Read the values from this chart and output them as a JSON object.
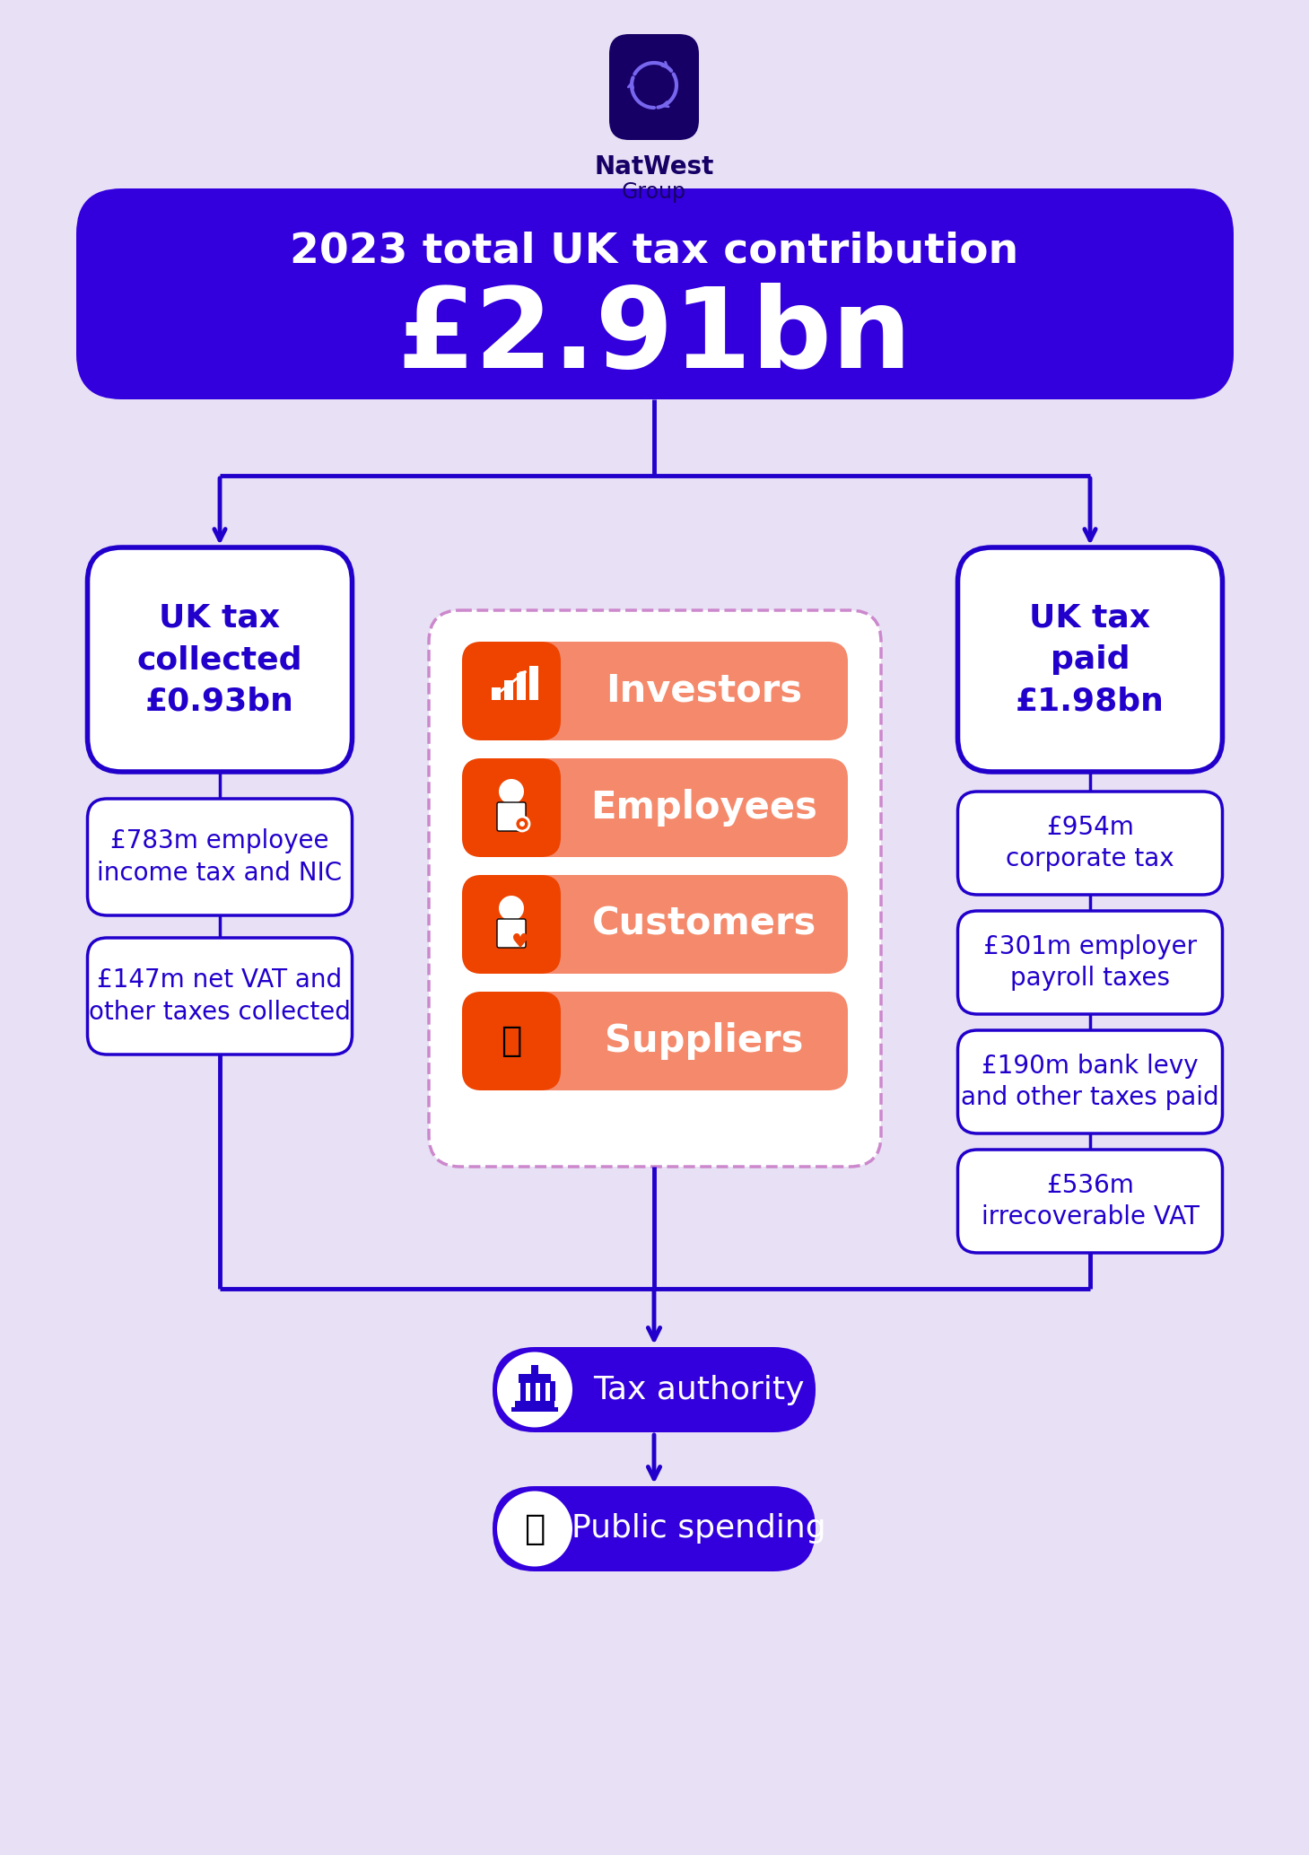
{
  "bg_color": "#e8e0f5",
  "blue_dark": "#2200cc",
  "blue_banner": "#3300dd",
  "orange_dark": "#ee4400",
  "orange_light": "#f4896b",
  "white": "#ffffff",
  "title_line1": "2023 total UK tax contribution",
  "title_line2": "£2.91bn",
  "left_box_title": "UK tax\ncollected\n£0.93bn",
  "right_box_title": "UK tax\npaid\n£1.98bn",
  "left_items": [
    "£783m employee\nincome tax and NIC",
    "£147m net VAT and\nother taxes collected"
  ],
  "right_items": [
    "£954m\ncorporate tax",
    "£301m employer\npayroll taxes",
    "£190m bank levy\nand other taxes paid",
    "£536m\nirrecoverable VAT"
  ],
  "center_labels": [
    "Investors",
    "Employees",
    "Customers",
    "Suppliers"
  ],
  "bottom_labels": [
    "Tax authority",
    "Public spending"
  ],
  "natwest_line1": "NatWest",
  "natwest_line2": "Group",
  "logo_bg": "#160066",
  "logo_icon_color": "#7766ee"
}
